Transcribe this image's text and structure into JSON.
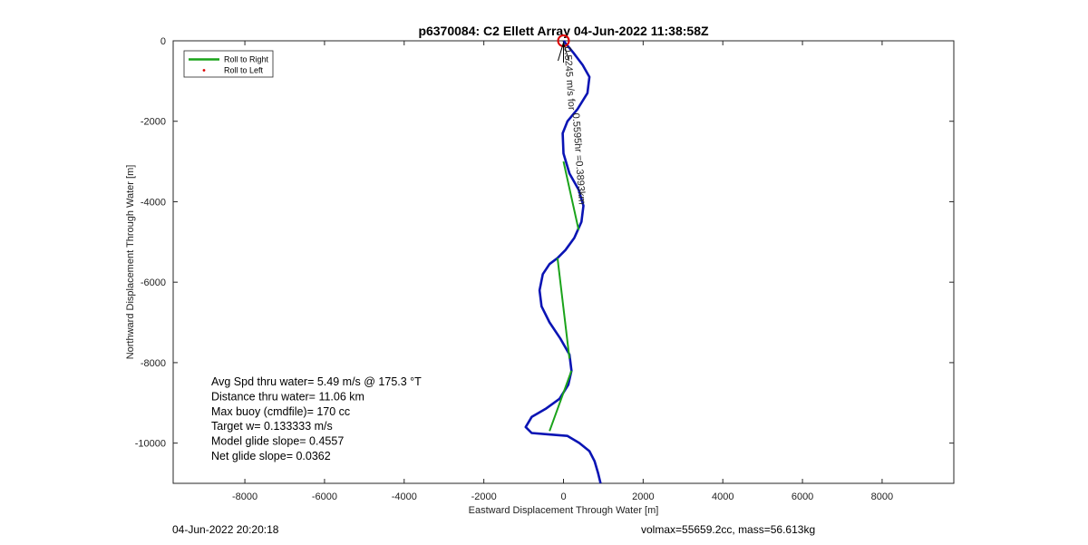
{
  "chart_data": {
    "type": "line",
    "title": "p6370084: C2 Ellett Array 04-Jun-2022 11:38:58Z",
    "xlabel": "Eastward Displacement Through Water [m]",
    "ylabel": "Northward Displacement Through Water [m]",
    "xlim": [
      -9800,
      9800
    ],
    "ylim": [
      -11000,
      0
    ],
    "xticks": [
      -8000,
      -6000,
      -4000,
      -2000,
      0,
      2000,
      4000,
      6000,
      8000
    ],
    "yticks": [
      0,
      -2000,
      -4000,
      -6000,
      -8000,
      -10000
    ],
    "grid": false,
    "legend_position": "top-left",
    "legend": [
      {
        "label": "Roll to Right",
        "color": "#1aa31a",
        "marker": "line"
      },
      {
        "label": "Roll to Left",
        "color": "#dd0000",
        "marker": "dot"
      }
    ],
    "series": [
      {
        "name": "",
        "color": "#0a14b4",
        "x": [
          0,
          250,
          480,
          650,
          600,
          350,
          100,
          -20,
          0,
          150,
          380,
          500,
          450,
          270,
          50,
          -150,
          -350,
          -520,
          -600,
          -550,
          -350,
          -80,
          150,
          200,
          120,
          -100,
          -450,
          -800,
          -950,
          -800,
          -400,
          100,
          400,
          650,
          780,
          870,
          930
        ],
        "y": [
          0,
          -300,
          -600,
          -900,
          -1300,
          -1700,
          -2000,
          -2300,
          -2800,
          -3300,
          -3700,
          -4100,
          -4500,
          -4900,
          -5200,
          -5400,
          -5550,
          -5800,
          -6200,
          -6600,
          -7000,
          -7400,
          -7800,
          -8200,
          -8550,
          -8900,
          -9150,
          -9350,
          -9600,
          -9750,
          -9780,
          -9820,
          -10000,
          -10200,
          -10450,
          -10750,
          -11000
        ]
      },
      {
        "name": "Roll to Right",
        "color": "#1aa31a",
        "segments": [
          {
            "x": [
              0,
              380
            ],
            "y": [
              -3000,
              -4700
            ]
          },
          {
            "x": [
              -150,
              150
            ],
            "y": [
              -5400,
              -7900
            ]
          },
          {
            "x": [
              200,
              -350
            ],
            "y": [
              -8200,
              -9700
            ]
          }
        ]
      }
    ],
    "markers": [
      {
        "type": "circle",
        "x": 0,
        "y": 0,
        "color": "#dd0000"
      }
    ],
    "annotations": [
      {
        "text": "0.5595hr =0.3893km",
        "x": 230,
        "y": -1800,
        "rotation_deg": 86
      },
      {
        "text": "0.5245 m/s  for",
        "x": 20,
        "y": -150,
        "rotation_deg": 86
      }
    ],
    "stats": [
      "Avg Spd thru water=  5.49 m/s @ 175.3 °T",
      "Distance thru water= 11.06 km",
      "Max buoy (cmdfile)= 170 cc",
      "Target w= 0.133333 m/s",
      "Model glide slope= 0.4557",
      "Net glide slope= 0.0362"
    ]
  },
  "footer": {
    "left": "04-Jun-2022 20:20:18",
    "right": "volmax=55659.2cc, mass=56.613kg"
  }
}
